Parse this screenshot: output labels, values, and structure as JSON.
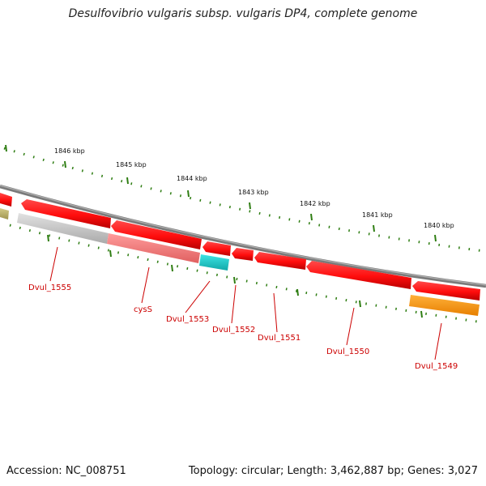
{
  "title": "Desulfovibrio vulgaris subsp. vulgaris DP4, complete genome",
  "footer": {
    "accession": "Accession: NC_008751",
    "topology": "Topology: circular; Length: 3,462,887 bp; Genes: 3,027"
  },
  "colors": {
    "backbone": "#888888",
    "tick": "#2e7d12",
    "label": "#cc0000",
    "gene_red": "#ff1010",
    "gene_grey": "#c8c8c8",
    "gene_pink": "#f27b7b",
    "gene_cyan": "#1cc8c8",
    "gene_orange": "#ff9a10",
    "gene_olive": "#bdb36a"
  },
  "kbp_labels": [
    "1846 kbp",
    "1845 kbp",
    "1844 kbp",
    "1843 kbp",
    "1842 kbp",
    "1841 kbp",
    "1840 kbp"
  ],
  "gene_labels": [
    "Dvul_1555",
    "cysS",
    "Dvul_1553",
    "Dvul_1552",
    "Dvul_1551",
    "Dvul_1550",
    "Dvul_1549"
  ]
}
